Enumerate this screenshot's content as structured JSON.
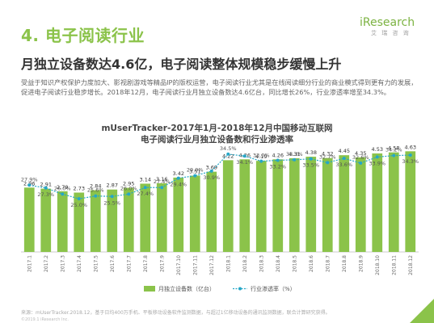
{
  "section": {
    "title": "4. 电子阅读行业"
  },
  "logo": {
    "main": "iResearch",
    "sub": "艾 瑞 咨 询"
  },
  "headline": "月独立设备数达4.6亿，电子阅读整体规模稳步缓慢上升",
  "body_text": "受益于知识产权保护力度加大、影视剧游戏等精品IP的版权运营，电子阅读行业尤其是在线阅读细分行业的商业模式得到更有力的发展，促进电子阅读行业稳步增长。2018年12月，电子阅读行业月独立设备数达4.6亿台，同比增长26%，行业渗透率增至34.3%。",
  "chart_data": {
    "type": "bar",
    "title": "mUserTracker-2017年1月-2018年12月中国移动互联网",
    "subtitle": "电子阅读行业月独立设备数和行业渗透率",
    "categories": [
      "2017.1",
      "2017.2",
      "2017.3",
      "2017.4",
      "2017.5",
      "2017.6",
      "2017.7",
      "2017.8",
      "2017.9",
      "2017.10",
      "2017.11",
      "2017.12",
      "2018.1",
      "2018.2",
      "2018.3",
      "2018.4",
      "2018.5",
      "2018.6",
      "2018.7",
      "2018.8",
      "2018.9",
      "2018.10",
      "2018.11",
      "2018.12"
    ],
    "series": [
      {
        "name": "月独立设备数（亿台）",
        "type": "bar",
        "color": "#8bc34a",
        "values": [
          2.96,
          2.91,
          2.79,
          2.73,
          2.84,
          2.87,
          2.95,
          3.14,
          3.16,
          3.42,
          3.51,
          3.69,
          4.22,
          4.26,
          4.19,
          4.26,
          4.31,
          4.38,
          4.32,
          4.45,
          4.35,
          4.53,
          4.58,
          4.63
        ],
        "labels": [
          "2.96",
          "2.91",
          "2.79",
          "2.73",
          "2.84",
          "2.87",
          "2.95",
          "3.14",
          "3.16",
          "3.42",
          "3.51",
          "3.69",
          "4.22",
          "4.26",
          "4.19",
          "4.26",
          "4.31",
          "4.38",
          "4.32",
          "4.45",
          "4.35",
          "4.53",
          "4.58",
          "4.63"
        ]
      },
      {
        "name": "行业渗透率（%）",
        "type": "line",
        "color": "#26a7c7",
        "values": [
          27.9,
          27.3,
          26.0,
          25.0,
          25.6,
          25.5,
          26.0,
          27.4,
          27.4,
          29.4,
          29.9,
          30.9,
          34.5,
          34.1,
          33.0,
          33.2,
          33.3,
          33.5,
          32.7,
          33.6,
          32.6,
          33.9,
          34.2,
          34.3
        ],
        "labels": [
          "27.9%",
          "27.3%",
          "26.0%",
          "25.0%",
          "25.6%",
          "25.5%",
          "26.0%",
          "27.4%",
          "27.4%",
          "29.4%",
          "29.9%",
          "30.9%",
          "34.5%",
          "34.1%",
          "33.0%",
          "33.2%",
          "33.3%",
          "33.5%",
          "32.7%",
          "33.6%",
          "32.6%",
          "33.9%",
          "34.2%",
          "34.3%"
        ]
      }
    ],
    "grid": false,
    "legend": "bottom"
  },
  "footer": {
    "source": "来源：mUserTracker.2018.12，基于日均400万手机、平板移动设备软件监测数据，与超过1亿移动设备的通讯监测数据，联合计算研究获得。",
    "copyright": "©2019.1 iResearch Inc."
  },
  "colors": {
    "accent": "#8bc34a",
    "line": "#26a7c7"
  }
}
